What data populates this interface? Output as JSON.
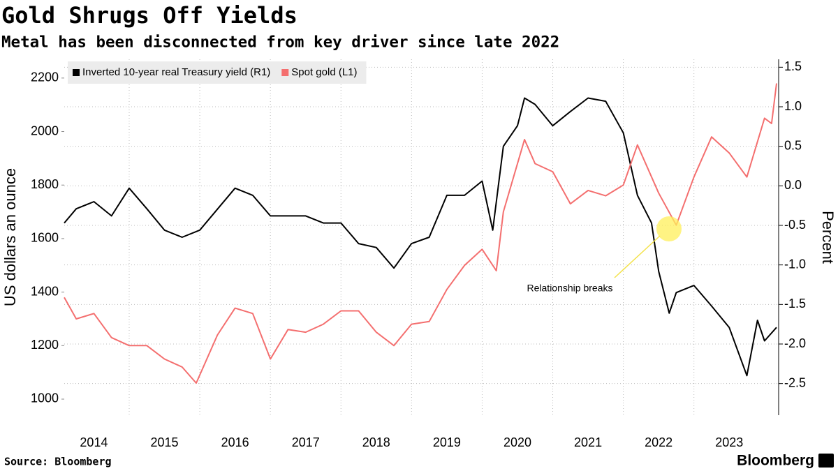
{
  "chart_data": {
    "type": "line",
    "title": "Gold Shrugs Off Yields",
    "subtitle": "Metal has been disconnected from key driver since late 2022",
    "y_label": "US dollars an ounce",
    "y2_label": "Percent",
    "source": "Source: Bloomberg",
    "brand": "Bloomberg",
    "annotation": "Relationship breaks",
    "xlim": [
      2014.08,
      2024.2
    ],
    "xticks": [
      2014,
      2015,
      2016,
      2017,
      2018,
      2019,
      2020,
      2021,
      2022,
      2023
    ],
    "ylim": [
      940,
      2270
    ],
    "yticks": [
      1000,
      1200,
      1400,
      1600,
      1800,
      2000,
      2200
    ],
    "y2lim": [
      -2.9,
      1.6
    ],
    "y2ticks": [
      -2.5,
      {
        "value": -2,
        "label": "-2.0"
      },
      -1.5,
      {
        "value": -1,
        "label": "-1.0"
      },
      -0.5,
      {
        "value": 0,
        "label": "0.0"
      },
      0.5,
      {
        "value": 1,
        "label": "1.0"
      },
      1.5
    ],
    "grid": true,
    "legend": "top-left",
    "series": [
      {
        "name": "Inverted 10-year real Treasury yield (R1)",
        "color": "#000000",
        "axis": "y2",
        "x": [
          2014.08,
          2014.25,
          2014.5,
          2014.75,
          2015.0,
          2015.25,
          2015.5,
          2015.75,
          2016.0,
          2016.5,
          2016.75,
          2017.0,
          2017.25,
          2017.5,
          2017.75,
          2018.0,
          2018.25,
          2018.5,
          2018.75,
          2019.0,
          2019.25,
          2019.5,
          2019.75,
          2020.0,
          2020.15,
          2020.3,
          2020.5,
          2020.6,
          2020.75,
          2021.0,
          2021.25,
          2021.5,
          2021.75,
          2022.0,
          2022.2,
          2022.4,
          2022.5,
          2022.65,
          2022.75,
          2023.0,
          2023.25,
          2023.5,
          2023.75,
          2023.9,
          2024.0,
          2024.17
        ],
        "values": [
          -0.47,
          -0.29,
          -0.2,
          -0.38,
          -0.03,
          -0.29,
          -0.56,
          -0.65,
          -0.56,
          -0.03,
          -0.12,
          -0.38,
          -0.38,
          -0.38,
          -0.47,
          -0.47,
          -0.73,
          -0.78,
          -1.04,
          -0.73,
          -0.65,
          -0.12,
          -0.12,
          0.06,
          -0.56,
          0.5,
          0.76,
          1.11,
          1.03,
          0.76,
          0.94,
          1.11,
          1.07,
          0.67,
          -0.12,
          -0.47,
          -1.08,
          -1.61,
          -1.35,
          -1.26,
          -1.52,
          -1.79,
          -2.4,
          -1.7,
          -1.96,
          -1.79
        ]
      },
      {
        "name": "Spot gold (L1)",
        "color": "#f46f6f",
        "x": [
          2014.08,
          2014.25,
          2014.5,
          2014.75,
          2015.0,
          2015.25,
          2015.5,
          2015.75,
          2015.95,
          2016.25,
          2016.5,
          2016.75,
          2017.0,
          2017.25,
          2017.5,
          2017.75,
          2018.0,
          2018.25,
          2018.5,
          2018.75,
          2019.0,
          2019.25,
          2019.5,
          2019.75,
          2020.0,
          2020.2,
          2020.3,
          2020.6,
          2020.75,
          2021.0,
          2021.25,
          2021.5,
          2021.75,
          2022.0,
          2022.2,
          2022.5,
          2022.75,
          2023.0,
          2023.25,
          2023.5,
          2023.75,
          2024.0,
          2024.1,
          2024.17
        ],
        "values": [
          1380,
          1300,
          1320,
          1230,
          1200,
          1200,
          1150,
          1120,
          1060,
          1240,
          1340,
          1320,
          1150,
          1260,
          1250,
          1280,
          1330,
          1330,
          1250,
          1200,
          1280,
          1290,
          1410,
          1500,
          1560,
          1480,
          1700,
          1970,
          1880,
          1850,
          1730,
          1780,
          1760,
          1800,
          1950,
          1770,
          1650,
          1830,
          1980,
          1920,
          1830,
          2050,
          2030,
          2180
        ]
      }
    ]
  }
}
